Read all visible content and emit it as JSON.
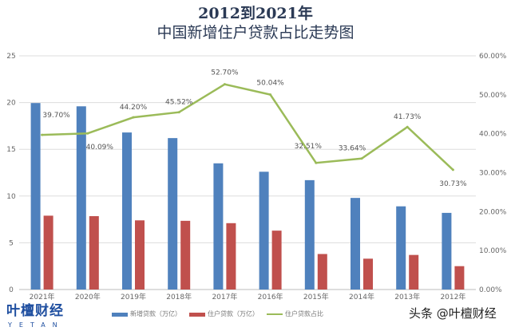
{
  "chart_data": {
    "type": "bar+line",
    "title": "2012到2021年",
    "subtitle": "中国新增住户贷款占比走势图",
    "categories": [
      "2021年",
      "2020年",
      "2019年",
      "2018年",
      "2017年",
      "2016年",
      "2015年",
      "2014年",
      "2013年",
      "2012年"
    ],
    "series": [
      {
        "name": "新增贷款（万亿）",
        "type": "bar",
        "axis": "left",
        "color": "#4f81bd",
        "values": [
          19.95,
          19.6,
          16.8,
          16.2,
          13.5,
          12.6,
          11.7,
          9.8,
          8.9,
          8.2
        ]
      },
      {
        "name": "住户贷款（万亿）",
        "type": "bar",
        "axis": "left",
        "color": "#c0504d",
        "values": [
          7.9,
          7.85,
          7.4,
          7.35,
          7.1,
          6.3,
          3.8,
          3.3,
          3.7,
          2.5
        ]
      },
      {
        "name": "住户贷款占比",
        "type": "line",
        "axis": "right",
        "color": "#9bbb59",
        "values": [
          39.7,
          40.09,
          44.2,
          45.52,
          52.7,
          50.04,
          32.51,
          33.64,
          41.73,
          30.73
        ],
        "labels": [
          "39.70%",
          "40.09%",
          "44.20%",
          "45.52%",
          "52.70%",
          "50.04%",
          "32.51%",
          "33.64%",
          "41.73%",
          "30.73%"
        ]
      }
    ],
    "y_left": {
      "range": [
        0,
        25
      ],
      "ticks": [
        "0",
        "5",
        "10",
        "15",
        "20",
        "25"
      ]
    },
    "y_right": {
      "range": [
        0,
        60
      ],
      "ticks": [
        "0.00%",
        "10.00%",
        "20.00%",
        "30.00%",
        "40.00%",
        "50.00%",
        "60.00%"
      ]
    },
    "grid": true,
    "legend": "bottom"
  },
  "branding": {
    "logo": "叶檀财经",
    "logo_sub": "YETAN",
    "watermark": "头条 @叶檀财经"
  }
}
